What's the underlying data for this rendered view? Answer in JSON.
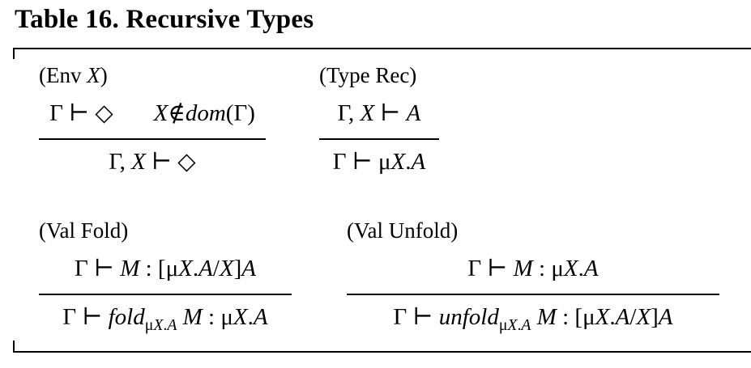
{
  "title": "Table 16. Recursive Types",
  "rules": {
    "env_x": {
      "name": "(Env X)",
      "premise_left": "Γ ⊢ ◇",
      "premise_right": "X∉dom(Γ)",
      "conclusion": "Γ, X ⊢ ◇"
    },
    "type_rec": {
      "name": "(Type Rec)",
      "premise": "Γ, X ⊢ A",
      "conclusion": "Γ ⊢ μX.A"
    },
    "val_fold": {
      "name": "(Val Fold)",
      "premise": "Γ ⊢ M : [μX.A/X]A",
      "conclusion": "Γ ⊢ foldμX.A M : μX.A"
    },
    "val_unfold": {
      "name": "(Val Unfold)",
      "premise": "Γ ⊢ M : μX.A",
      "conclusion": "Γ ⊢ unfoldμX.A M : [μX.A/X]A"
    }
  }
}
